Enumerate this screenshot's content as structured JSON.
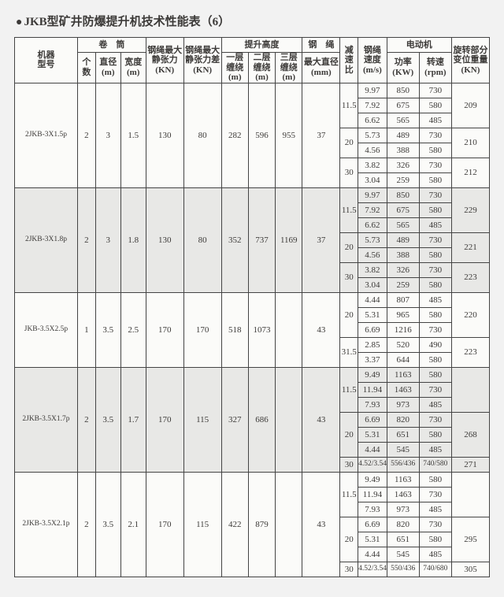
{
  "title": "JKB型矿井防爆提升机技术性能表（6）",
  "headers": {
    "model": "机器\n型号",
    "drum": "卷　筒",
    "drum_n": "个\n数",
    "drum_d": "直径\n(m)",
    "drum_w": "宽度\n(m)",
    "force_max": "钢绳最大\n静张力\n(KN)",
    "force_diff": "钢绳最大\n静张力差\n(KN)",
    "lift": "提升高度",
    "lift1": "一层\n缠绕\n(m)",
    "lift2": "二层\n缠绕\n(m)",
    "lift3": "三层\n缠绕\n(m)",
    "rope": "钢　绳",
    "rope_d": "最大直径\n(mm)",
    "ratio": "减\n速\n比",
    "speed": "钢绳\n速度\n(m/s)",
    "motor": "电动机",
    "motor_kw": "功率\n(KW)",
    "motor_rpm": "转速\n(rpm)",
    "weight": "旋转部分\n变位重量\n(KN)"
  },
  "colors": {
    "bg": "#f2f2f2",
    "paper": "#fbfbf9",
    "shade": "#e8e8e6",
    "border": "#444444",
    "text": "#3c3a38"
  },
  "font": {
    "family": "SimSun",
    "header_pt": 11,
    "body_pt": 11,
    "title_pt": 15
  },
  "groups": [
    {
      "shade": false,
      "model": "2JKB-3X1.5p",
      "n": "2",
      "d": "3",
      "w": "1.5",
      "f1": "130",
      "f2": "80",
      "h1": "282",
      "h2": "596",
      "h3": "955",
      "rope": "37",
      "rows": [
        {
          "ratio": "11.5",
          "ratio_span": 3,
          "spd": "9.97",
          "kw": "850",
          "rpm": "730",
          "wt": "209",
          "wt_span": 3
        },
        {
          "spd": "7.92",
          "kw": "675",
          "rpm": "580"
        },
        {
          "spd": "6.62",
          "kw": "565",
          "rpm": "485"
        },
        {
          "ratio": "20",
          "ratio_span": 2,
          "spd": "5.73",
          "kw": "489",
          "rpm": "730",
          "wt": "210",
          "wt_span": 2
        },
        {
          "spd": "4.56",
          "kw": "388",
          "rpm": "580"
        },
        {
          "ratio": "30",
          "ratio_span": 2,
          "spd": "3.82",
          "kw": "326",
          "rpm": "730",
          "wt": "212",
          "wt_span": 2
        },
        {
          "spd": "3.04",
          "kw": "259",
          "rpm": "580"
        }
      ]
    },
    {
      "shade": true,
      "model": "2JKB-3X1.8p",
      "n": "2",
      "d": "3",
      "w": "1.8",
      "f1": "130",
      "f2": "80",
      "h1": "352",
      "h2": "737",
      "h3": "1169",
      "rope": "37",
      "rows": [
        {
          "ratio": "11.5",
          "ratio_span": 3,
          "spd": "9.97",
          "kw": "850",
          "rpm": "730",
          "wt": "229",
          "wt_span": 3
        },
        {
          "spd": "7.92",
          "kw": "675",
          "rpm": "580"
        },
        {
          "spd": "6.62",
          "kw": "565",
          "rpm": "485"
        },
        {
          "ratio": "20",
          "ratio_span": 2,
          "spd": "5.73",
          "kw": "489",
          "rpm": "730",
          "wt": "221",
          "wt_span": 2
        },
        {
          "spd": "4.56",
          "kw": "388",
          "rpm": "580"
        },
        {
          "ratio": "30",
          "ratio_span": 2,
          "spd": "3.82",
          "kw": "326",
          "rpm": "730",
          "wt": "223",
          "wt_span": 2
        },
        {
          "spd": "3.04",
          "kw": "259",
          "rpm": "580"
        }
      ]
    },
    {
      "shade": false,
      "model": "JKB-3.5X2.5p",
      "n": "1",
      "d": "3.5",
      "w": "2.5",
      "f1": "170",
      "f2": "170",
      "h1": "518",
      "h2": "1073",
      "h3": "",
      "rope": "43",
      "rows": [
        {
          "ratio": "20",
          "ratio_span": 3,
          "spd": "4.44",
          "kw": "807",
          "rpm": "485",
          "wt": "220",
          "wt_span": 3
        },
        {
          "spd": "5.31",
          "kw": "965",
          "rpm": "580"
        },
        {
          "spd": "6.69",
          "kw": "1216",
          "rpm": "730"
        },
        {
          "ratio": "31.5",
          "ratio_span": 2,
          "spd": "2.85",
          "kw": "520",
          "rpm": "490",
          "wt": "223",
          "wt_span": 2
        },
        {
          "spd": "3.37",
          "kw": "644",
          "rpm": "580"
        }
      ]
    },
    {
      "shade": true,
      "model": "2JKB-3.5X1.7p",
      "n": "2",
      "d": "3.5",
      "w": "1.7",
      "f1": "170",
      "f2": "115",
      "h1": "327",
      "h2": "686",
      "h3": "",
      "rope": "43",
      "rows": [
        {
          "ratio": "11.5",
          "ratio_span": 3,
          "spd": "9.49",
          "kw": "1163",
          "rpm": "580",
          "wt": "",
          "wt_span": 3
        },
        {
          "spd": "11.94",
          "kw": "1463",
          "rpm": "730"
        },
        {
          "spd": "7.93",
          "kw": "973",
          "rpm": "485"
        },
        {
          "ratio": "20",
          "ratio_span": 3,
          "spd": "6.69",
          "kw": "820",
          "rpm": "730",
          "wt": "268",
          "wt_span": 3
        },
        {
          "spd": "5.31",
          "kw": "651",
          "rpm": "580"
        },
        {
          "spd": "4.44",
          "kw": "545",
          "rpm": "485"
        },
        {
          "ratio": "30",
          "ratio_span": 1,
          "spd": "4.52/3.54",
          "kw": "556/436",
          "rpm": "740/580",
          "wt": "271",
          "wt_span": 1,
          "small": true
        }
      ]
    },
    {
      "shade": false,
      "model": "2JKB-3.5X2.1p",
      "n": "2",
      "d": "3.5",
      "w": "2.1",
      "f1": "170",
      "f2": "115",
      "h1": "422",
      "h2": "879",
      "h3": "",
      "rope": "43",
      "rows": [
        {
          "ratio": "11.5",
          "ratio_span": 3,
          "spd": "9.49",
          "kw": "1163",
          "rpm": "580",
          "wt": "",
          "wt_span": 3
        },
        {
          "spd": "11.94",
          "kw": "1463",
          "rpm": "730"
        },
        {
          "spd": "7.93",
          "kw": "973",
          "rpm": "485"
        },
        {
          "ratio": "20",
          "ratio_span": 3,
          "spd": "6.69",
          "kw": "820",
          "rpm": "730",
          "wt": "295",
          "wt_span": 3
        },
        {
          "spd": "5.31",
          "kw": "651",
          "rpm": "580"
        },
        {
          "spd": "4.44",
          "kw": "545",
          "rpm": "485"
        },
        {
          "ratio": "30",
          "ratio_span": 1,
          "spd": "4.52/3.54",
          "kw": "550/436",
          "rpm": "740/680",
          "wt": "305",
          "wt_span": 1,
          "small": true
        }
      ]
    }
  ]
}
